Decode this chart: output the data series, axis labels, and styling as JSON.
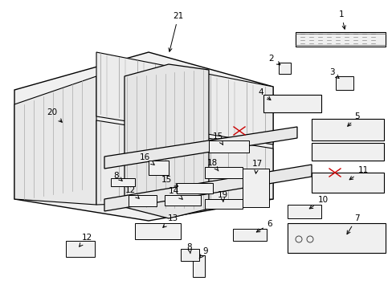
{
  "background_color": "#ffffff",
  "fig_width": 4.89,
  "fig_height": 3.6,
  "dpi": 100,
  "line_color": "#000000",
  "fill_color": "#ffffff",
  "stripe_color": "#888888",
  "red_color": "#cc0000"
}
